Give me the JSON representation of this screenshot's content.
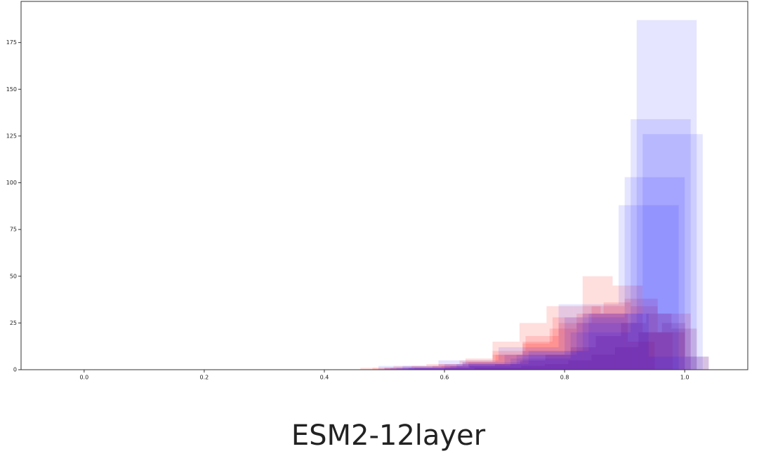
{
  "chart_data": {
    "type": "histogram",
    "title": "ESM2-12layer",
    "xlim": [
      -0.105,
      1.105
    ],
    "ylim": [
      0,
      197
    ],
    "xticks": [
      {
        "value": 0,
        "label": "0.0"
      },
      {
        "value": 0.2,
        "label": "0.2"
      },
      {
        "value": 0.4,
        "label": "0.4"
      },
      {
        "value": 0.6,
        "label": "0.6"
      },
      {
        "value": 0.8,
        "label": "0.8"
      },
      {
        "value": 1,
        "label": "1.0"
      }
    ],
    "yticks": [
      0,
      25,
      50,
      75,
      100,
      125,
      150,
      175
    ],
    "series": [
      {
        "color": "#ff0000",
        "alpha": 0.13,
        "bins": [
          0.46,
          0.515,
          0.57,
          0.625,
          0.68,
          0.735,
          0.79,
          0.845,
          0.9,
          0.955,
          1.01
        ],
        "counts": [
          1,
          2,
          3,
          5,
          10,
          18,
          25,
          34,
          38,
          30
        ]
      },
      {
        "color": "#ff0000",
        "alpha": 0.13,
        "bins": [
          0.48,
          0.53,
          0.58,
          0.63,
          0.68,
          0.73,
          0.78,
          0.83,
          0.88,
          0.93,
          0.98
        ],
        "counts": [
          1,
          1,
          2,
          4,
          8,
          15,
          28,
          50,
          45,
          20
        ]
      },
      {
        "color": "#ff0000",
        "alpha": 0.13,
        "bins": [
          0.55,
          0.595,
          0.64,
          0.685,
          0.73,
          0.775,
          0.82,
          0.865,
          0.91,
          0.955,
          1.0
        ],
        "counts": [
          1,
          2,
          4,
          8,
          14,
          22,
          30,
          36,
          34,
          20
        ]
      },
      {
        "color": "#ff0000",
        "alpha": 0.13,
        "bins": [
          0.5,
          0.545,
          0.59,
          0.635,
          0.68,
          0.725,
          0.77,
          0.815,
          0.86,
          0.905,
          0.95
        ],
        "counts": [
          1,
          2,
          3,
          6,
          15,
          25,
          34,
          34,
          30,
          15
        ]
      },
      {
        "color": "#a0002a",
        "alpha": 0.15,
        "bins": [
          0.6,
          0.642,
          0.684,
          0.726,
          0.768,
          0.81,
          0.852,
          0.894,
          0.936,
          0.978,
          1.02
        ],
        "counts": [
          1,
          2,
          3,
          5,
          8,
          12,
          18,
          25,
          30,
          22
        ]
      },
      {
        "color": "#a0002a",
        "alpha": 0.15,
        "bins": [
          0.65,
          0.689,
          0.728,
          0.767,
          0.806,
          0.845,
          0.884,
          0.923,
          0.962,
          1.001,
          1.04
        ],
        "counts": [
          1,
          1,
          2,
          3,
          5,
          8,
          12,
          20,
          25,
          7
        ]
      },
      {
        "color": "#0000ff",
        "alpha": 0.1,
        "bins": [
          0.52,
          0.62,
          0.72,
          0.82,
          0.92,
          1.02
        ],
        "counts": [
          1,
          3,
          8,
          25,
          187
        ]
      },
      {
        "color": "#0000ff",
        "alpha": 0.1,
        "bins": [
          0.51,
          0.61,
          0.71,
          0.81,
          0.91,
          1.01
        ],
        "counts": [
          1,
          2,
          6,
          20,
          134
        ]
      },
      {
        "color": "#0000ff",
        "alpha": 0.1,
        "bins": [
          0.53,
          0.63,
          0.73,
          0.83,
          0.93,
          1.03
        ],
        "counts": [
          2,
          4,
          10,
          30,
          126
        ]
      },
      {
        "color": "#0000ff",
        "alpha": 0.1,
        "bins": [
          0.5,
          0.6,
          0.7,
          0.8,
          0.9,
          1.0
        ],
        "counts": [
          1,
          3,
          8,
          28,
          103
        ]
      },
      {
        "color": "#0000ff",
        "alpha": 0.1,
        "bins": [
          0.49,
          0.59,
          0.69,
          0.79,
          0.89,
          0.99
        ],
        "counts": [
          2,
          5,
          12,
          35,
          88
        ]
      },
      {
        "color": "#0000ff",
        "alpha": 0.1,
        "bins": [
          0.44,
          0.54,
          0.64,
          0.74,
          0.84,
          0.94,
          1.04
        ],
        "counts": [
          0,
          1,
          3,
          10,
          30,
          7
        ]
      }
    ]
  }
}
